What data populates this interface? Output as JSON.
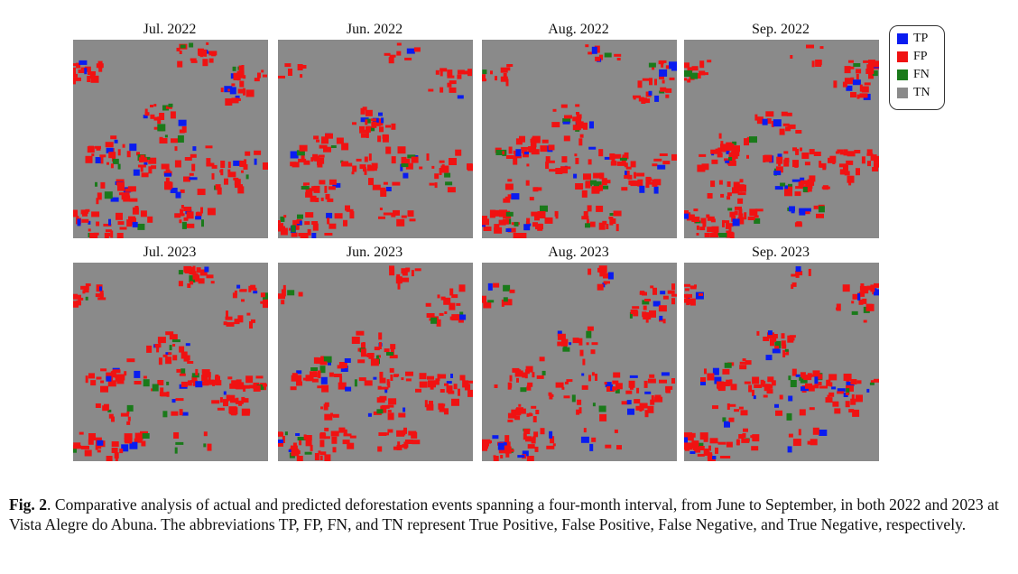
{
  "figure": {
    "panels": [
      {
        "title": "Jul. 2022"
      },
      {
        "title": "Jun. 2022"
      },
      {
        "title": "Aug. 2022"
      },
      {
        "title": "Sep. 2022"
      },
      {
        "title": "Jul. 2023"
      },
      {
        "title": "Jun. 2023"
      },
      {
        "title": "Aug. 2023"
      },
      {
        "title": "Sep. 2023"
      }
    ],
    "legend": [
      {
        "label": "TP",
        "color": "#0a1cf0"
      },
      {
        "label": "FP",
        "color": "#f01212"
      },
      {
        "label": "FN",
        "color": "#1a7a1a"
      },
      {
        "label": "TN",
        "color": "#8a8a8a"
      }
    ]
  },
  "caption": {
    "label": "Fig. 2",
    "text": ". Comparative analysis of actual and predicted deforestation events spanning a four-month interval, from June to September, in both 2022 and 2023 at Vista Alegre do Abuna. The abbreviations TP, FP, FN, and TN represent True Positive, False Positive, False Negative, and True Negative, respectively."
  }
}
